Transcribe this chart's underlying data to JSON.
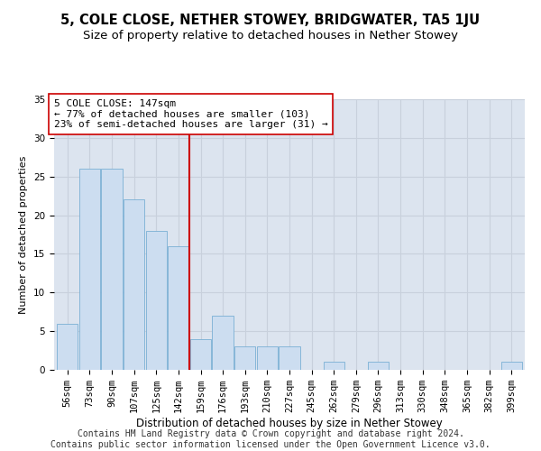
{
  "title": "5, COLE CLOSE, NETHER STOWEY, BRIDGWATER, TA5 1JU",
  "subtitle": "Size of property relative to detached houses in Nether Stowey",
  "xlabel": "Distribution of detached houses by size in Nether Stowey",
  "ylabel": "Number of detached properties",
  "categories": [
    "56sqm",
    "73sqm",
    "90sqm",
    "107sqm",
    "125sqm",
    "142sqm",
    "159sqm",
    "176sqm",
    "193sqm",
    "210sqm",
    "227sqm",
    "245sqm",
    "262sqm",
    "279sqm",
    "296sqm",
    "313sqm",
    "330sqm",
    "348sqm",
    "365sqm",
    "382sqm",
    "399sqm"
  ],
  "values": [
    6,
    26,
    26,
    22,
    18,
    16,
    4,
    7,
    3,
    3,
    3,
    0,
    1,
    0,
    1,
    0,
    0,
    0,
    0,
    0,
    1
  ],
  "bar_color": "#ccddf0",
  "bar_edge_color": "#7aafd4",
  "vline_color": "#cc0000",
  "annotation_line1": "5 COLE CLOSE: 147sqm",
  "annotation_line2": "← 77% of detached houses are smaller (103)",
  "annotation_line3": "23% of semi-detached houses are larger (31) →",
  "annotation_box_color": "#ffffff",
  "annotation_box_edge": "#cc0000",
  "ylim": [
    0,
    35
  ],
  "yticks": [
    0,
    5,
    10,
    15,
    20,
    25,
    30,
    35
  ],
  "grid_color": "#c8d0dc",
  "bg_color": "#dce4ef",
  "footer_line1": "Contains HM Land Registry data © Crown copyright and database right 2024.",
  "footer_line2": "Contains public sector information licensed under the Open Government Licence v3.0.",
  "title_fontsize": 10.5,
  "subtitle_fontsize": 9.5,
  "annotation_fontsize": 8,
  "footer_fontsize": 7,
  "ylabel_fontsize": 8,
  "xlabel_fontsize": 8.5,
  "tick_fontsize": 7.5
}
